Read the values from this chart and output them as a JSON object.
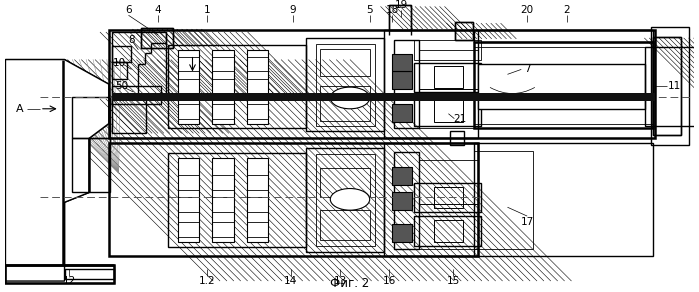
{
  "title": "Фиг. 2",
  "label_A": "A",
  "bg_color": "#ffffff",
  "line_color": "#000000",
  "fig_width": 6.99,
  "fig_height": 2.92,
  "dpi": 100
}
